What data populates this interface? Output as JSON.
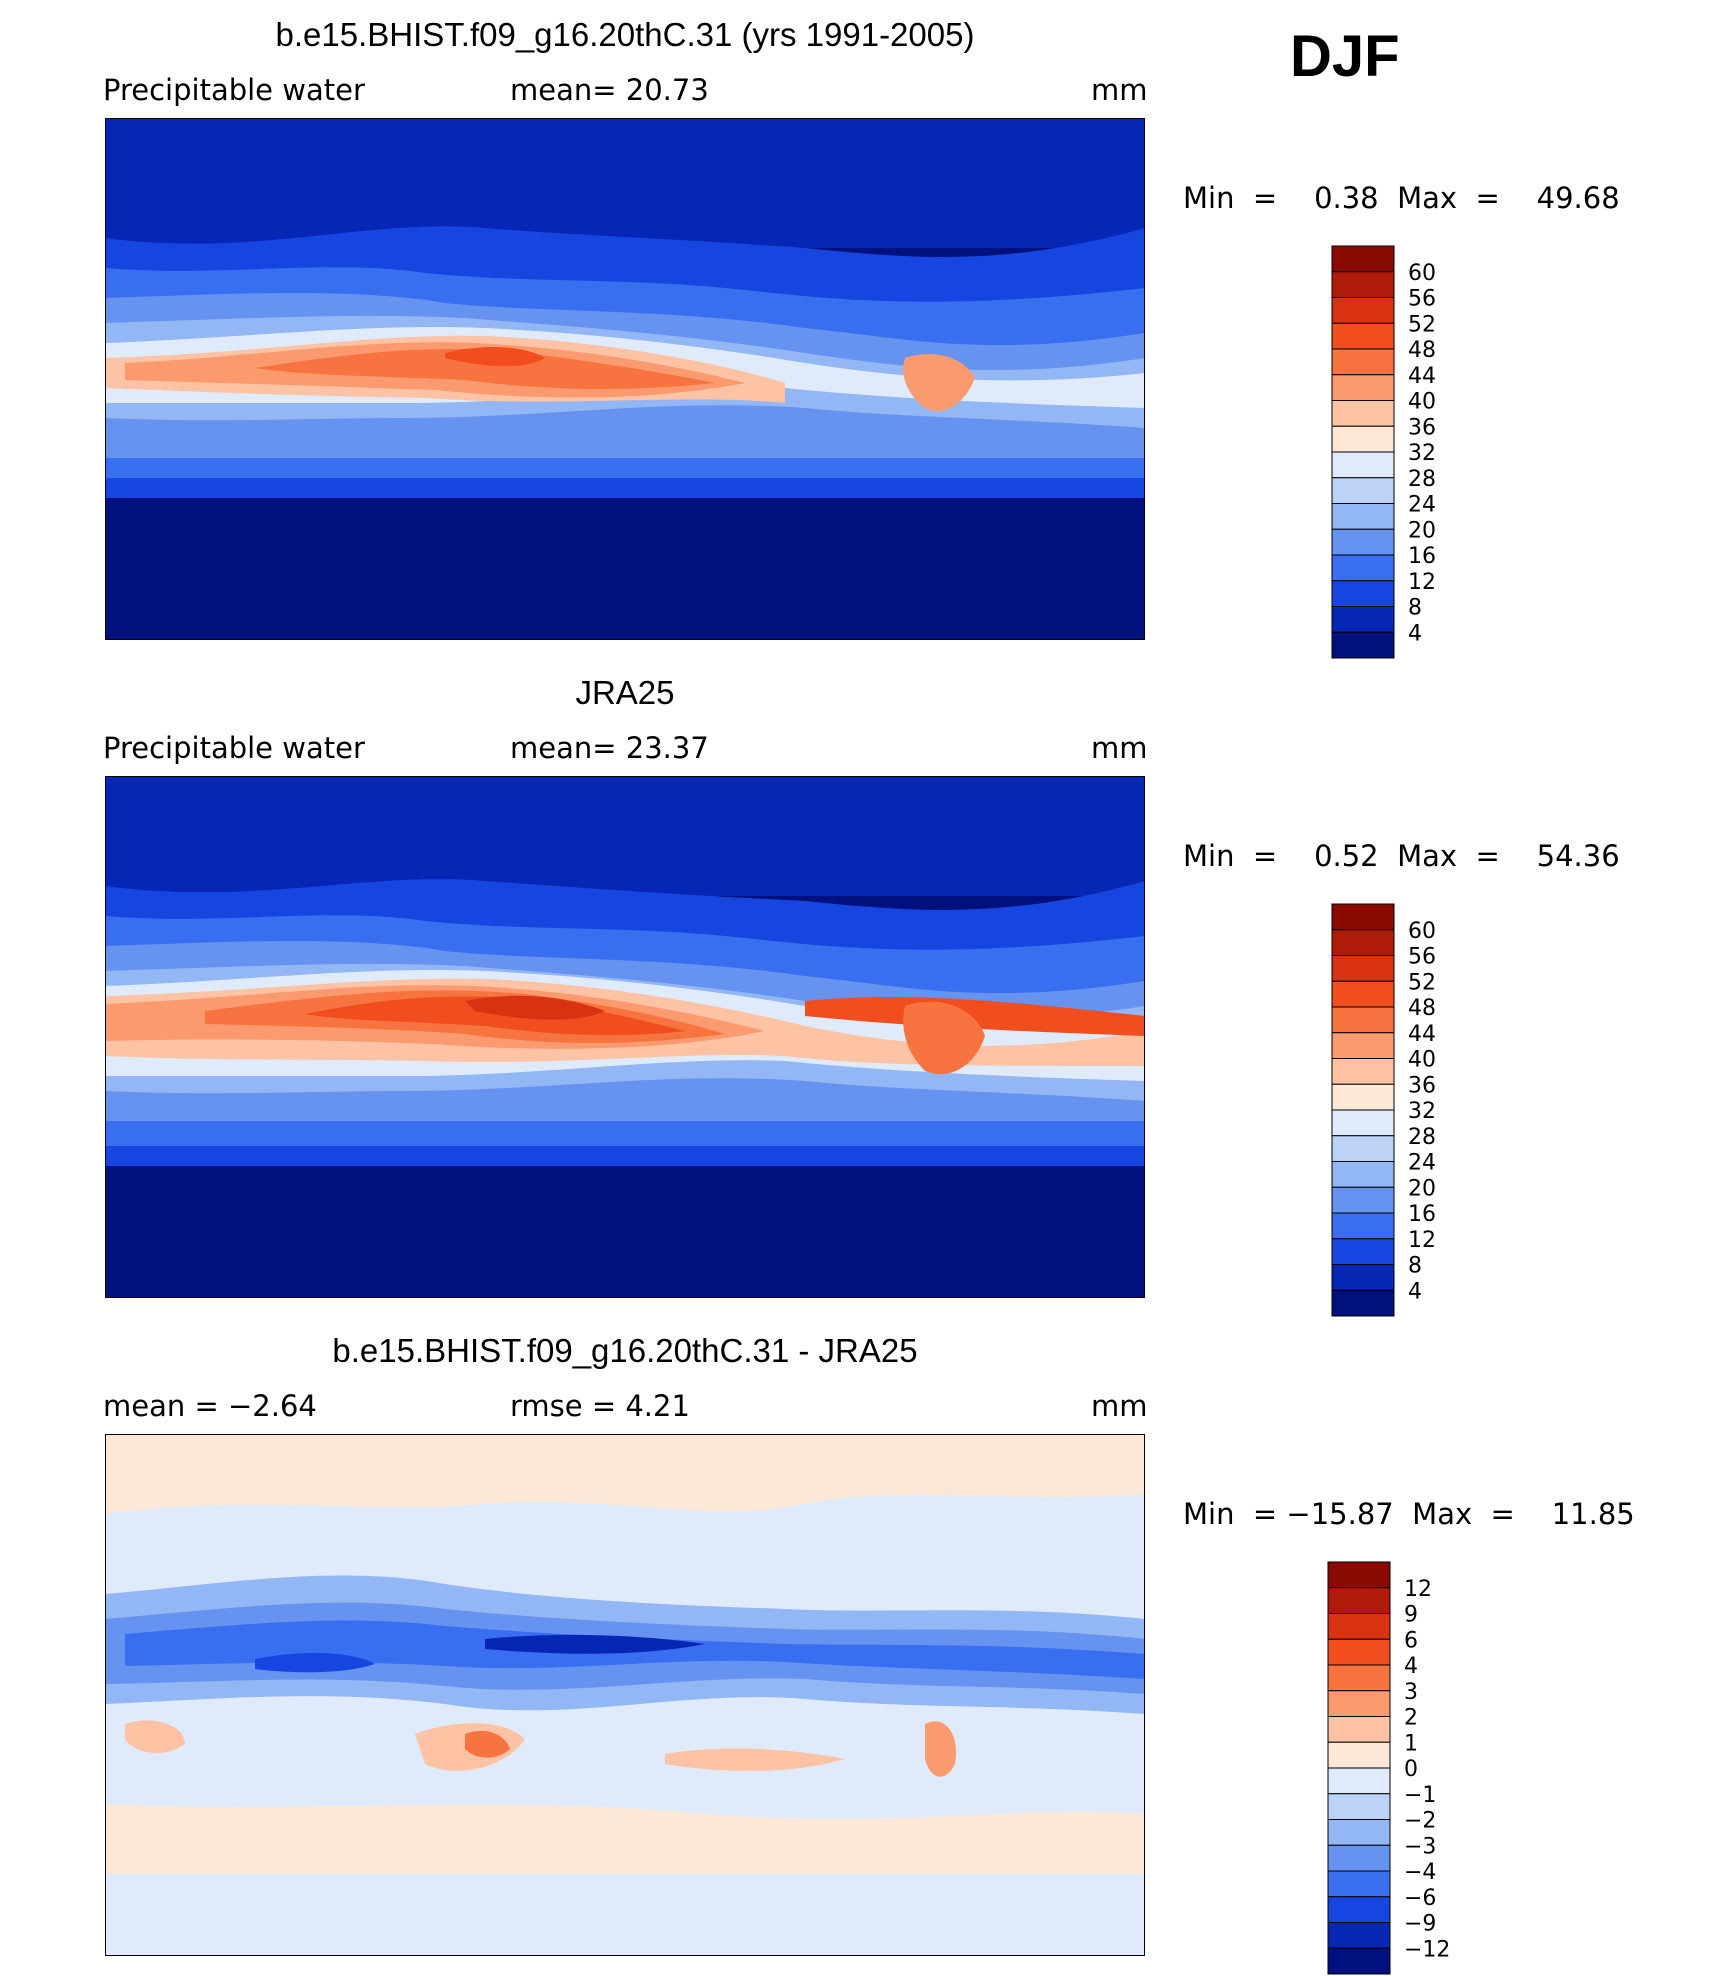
{
  "season_label": "DJF",
  "panels": [
    {
      "id": "model",
      "title": "b.e15.BHIST.f09_g16.20thC.31 (yrs 1991-2005)",
      "left_label": "Precipitable  water",
      "mid_label": "mean=   20.73",
      "unit": "mm",
      "minmax": "Min  =    0.38  Max  =    49.68",
      "colorbar_labels": [
        "60",
        "56",
        "52",
        "48",
        "44",
        "40",
        "36",
        "32",
        "28",
        "24",
        "20",
        "16",
        "12",
        "8",
        "4"
      ],
      "colorbar_colors": [
        "#8a0a02",
        "#b01a08",
        "#d93212",
        "#f04e1e",
        "#f7733f",
        "#fb9a6e",
        "#fdc3a4",
        "#fde8d7",
        "#dfeafa",
        "#bcd3f8",
        "#93b6f4",
        "#6593ef",
        "#3a6ef0",
        "#1745e0",
        "#0627b6",
        "#00117f"
      ]
    },
    {
      "id": "obs",
      "title": "JRA25",
      "left_label": "Precipitable  water",
      "mid_label": "mean=   23.37",
      "unit": "mm",
      "minmax": "Min  =    0.52  Max  =    54.36",
      "colorbar_labels": [
        "60",
        "56",
        "52",
        "48",
        "44",
        "40",
        "36",
        "32",
        "28",
        "24",
        "20",
        "16",
        "12",
        "8",
        "4"
      ],
      "colorbar_colors": [
        "#8a0a02",
        "#b01a08",
        "#d93212",
        "#f04e1e",
        "#f7733f",
        "#fb9a6e",
        "#fdc3a4",
        "#fde8d7",
        "#dfeafa",
        "#bcd3f8",
        "#93b6f4",
        "#6593ef",
        "#3a6ef0",
        "#1745e0",
        "#0627b6",
        "#00117f"
      ]
    },
    {
      "id": "diff",
      "title": "b.e15.BHIST.f09_g16.20thC.31 - JRA25",
      "left_label": "mean  =    −2.64",
      "mid_label": "rmse  =     4.21",
      "unit": "mm",
      "minmax": "Min  = −15.87  Max  =    11.85",
      "colorbar_labels": [
        "12",
        "9",
        "6",
        "4",
        "3",
        "2",
        "1",
        "0",
        "−1",
        "−2",
        "−3",
        "−4",
        "−6",
        "−9",
        "−12"
      ],
      "colorbar_colors": [
        "#8a0a02",
        "#b01a08",
        "#d93212",
        "#f04e1e",
        "#f7733f",
        "#fb9a6e",
        "#fdc3a4",
        "#fde8d7",
        "#dfeafa",
        "#bcd3f8",
        "#93b6f4",
        "#6593ef",
        "#3a6ef0",
        "#1745e0",
        "#0627b6",
        "#00117f"
      ]
    }
  ]
}
